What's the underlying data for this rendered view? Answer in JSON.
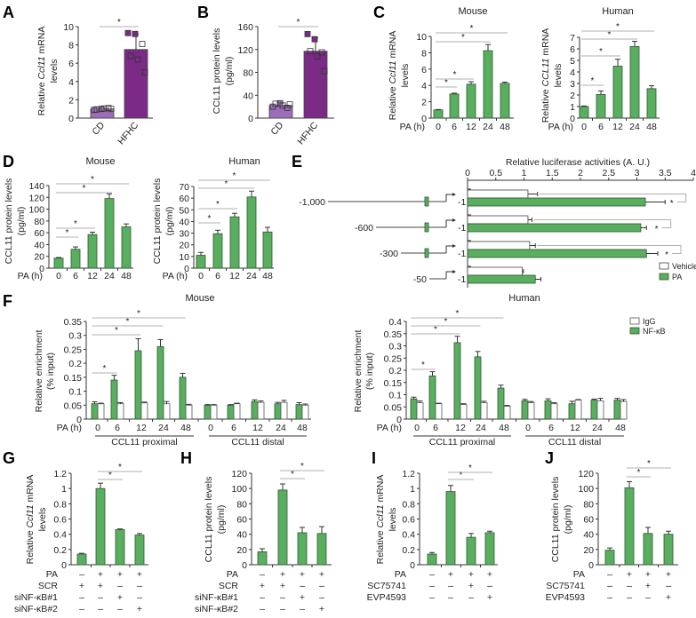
{
  "colors": {
    "green": "#5aae5f",
    "green_stroke": "#2e5a30",
    "white": "#ffffff",
    "cd": "#9c6db8",
    "hfhc": "#7b2a86",
    "sig_line": "#b0b0b0"
  },
  "chart_data": [
    {
      "id": "A",
      "letter": "A",
      "type": "bar",
      "title": "",
      "ylabel": [
        [
          {
            "t": "Relative "
          },
          {
            "t": "Ccl11",
            "i": true
          },
          {
            "t": " mRNA"
          }
        ],
        [
          {
            "t": "levels"
          }
        ]
      ],
      "ylim": [
        0,
        10
      ],
      "yticks": [
        0,
        2,
        4,
        6,
        8,
        10
      ],
      "categories": [
        "CD",
        "HFHC"
      ],
      "values": [
        1.0,
        7.5
      ],
      "errors": [
        0.1,
        1.7
      ],
      "bar_colors": [
        "cd",
        "hfhc"
      ],
      "points": [
        [
          0.9,
          1.0,
          1.1,
          0.95,
          1.05,
          1.0
        ],
        [
          9.3,
          9.2,
          8.1,
          6.8,
          6.4,
          5.0
        ]
      ],
      "significance": [
        [
          0,
          1
        ]
      ],
      "star": "*"
    },
    {
      "id": "B",
      "letter": "B",
      "type": "bar",
      "title": "",
      "ylabel": [
        [
          {
            "t": "CCL11 protein levels"
          }
        ],
        [
          {
            "t": "(pg/ml)"
          }
        ]
      ],
      "ylim": [
        0,
        160
      ],
      "yticks": [
        0,
        40,
        80,
        120,
        160
      ],
      "categories": [
        "CD",
        "HFHC"
      ],
      "values": [
        22,
        117
      ],
      "errors": [
        4,
        23
      ],
      "bar_colors": [
        "cd",
        "hfhc"
      ],
      "points": [
        [
          20,
          26,
          18,
          25,
          22,
          24
        ],
        [
          147,
          138,
          115,
          117,
          108,
          82
        ]
      ],
      "significance": [
        [
          0,
          1
        ]
      ],
      "star": "*"
    },
    {
      "id": "C-mouse",
      "letter": "C",
      "type": "bar",
      "title": "Mouse",
      "xprefix": "PA (h)",
      "ylabel": [
        [
          {
            "t": "Relative "
          },
          {
            "t": "Ccl11",
            "i": true
          },
          {
            "t": " mRNA"
          }
        ],
        [
          {
            "t": "levels"
          }
        ]
      ],
      "ylim": [
        0,
        10
      ],
      "yticks": [
        0,
        2,
        4,
        6,
        8,
        10
      ],
      "categories": [
        "0",
        "6",
        "12",
        "24",
        "48"
      ],
      "values": [
        1.0,
        2.95,
        4.15,
        8.25,
        4.25
      ],
      "errors": [
        0.05,
        0.1,
        0.3,
        0.75,
        0.15
      ],
      "significance": [
        [
          0,
          1
        ],
        [
          0,
          2
        ],
        [
          0,
          3
        ],
        [
          0,
          4
        ]
      ],
      "star": "*"
    },
    {
      "id": "C-human",
      "letter": "",
      "type": "bar",
      "title": "Human",
      "xprefix": "PA (h)",
      "ylabel": [
        [
          {
            "t": "Relative "
          },
          {
            "t": "CCL11",
            "i": true
          },
          {
            "t": " mRNA"
          }
        ],
        [
          {
            "t": "levels"
          }
        ]
      ],
      "ylim": [
        0,
        7
      ],
      "yticks": [
        0,
        1,
        2,
        3,
        4,
        5,
        6,
        7
      ],
      "categories": [
        "0",
        "6",
        "12",
        "24",
        "48"
      ],
      "values": [
        1.0,
        2.05,
        4.5,
        6.2,
        2.55
      ],
      "errors": [
        0.05,
        0.3,
        0.6,
        0.45,
        0.25
      ],
      "significance": [
        [
          0,
          1
        ],
        [
          0,
          2
        ],
        [
          0,
          3
        ],
        [
          0,
          4
        ]
      ],
      "star": "*"
    },
    {
      "id": "D-mouse",
      "letter": "D",
      "type": "bar",
      "title": "Mouse",
      "xprefix": "PA (h)",
      "ylabel": [
        [
          {
            "t": "CCL11 protein levels"
          }
        ],
        [
          {
            "t": "(pg/ml)"
          }
        ]
      ],
      "ylim": [
        0,
        140
      ],
      "yticks": [
        0,
        20,
        40,
        60,
        80,
        100,
        120,
        140
      ],
      "categories": [
        "0",
        "6",
        "12",
        "24",
        "48"
      ],
      "values": [
        17,
        32,
        57,
        118,
        70
      ],
      "errors": [
        1,
        4,
        4,
        8,
        5
      ],
      "significance": [
        [
          0,
          1
        ],
        [
          0,
          2
        ],
        [
          0,
          3
        ],
        [
          0,
          4
        ]
      ],
      "star": "*"
    },
    {
      "id": "D-human",
      "letter": "",
      "type": "bar",
      "title": "Human",
      "xprefix": "PA (h)",
      "ylabel": [
        [
          {
            "t": "CCL11 protein levels"
          }
        ],
        [
          {
            "t": "(pg/ml)"
          }
        ]
      ],
      "ylim": [
        0,
        70
      ],
      "yticks": [
        0,
        10,
        20,
        30,
        40,
        50,
        60,
        70
      ],
      "categories": [
        "0",
        "6",
        "12",
        "24",
        "48"
      ],
      "values": [
        11,
        29.5,
        44,
        61,
        31
      ],
      "errors": [
        2.5,
        3,
        3,
        5,
        4
      ],
      "significance": [
        [
          0,
          1
        ],
        [
          0,
          2
        ],
        [
          0,
          3
        ],
        [
          0,
          4
        ]
      ],
      "star": "*"
    },
    {
      "id": "E",
      "letter": "E",
      "type": "hbar",
      "title": "Relative luciferase activities (A. U.)",
      "xlim": [
        0,
        4
      ],
      "xticks": [
        "0",
        "0.5",
        "1",
        "1.5",
        "2",
        "2.5",
        "3",
        "3.5",
        "4"
      ],
      "constructs": [
        "-1,000",
        "-600",
        "-300",
        "-50"
      ],
      "tss_label": "-1",
      "series": [
        {
          "name": "Vehicle",
          "color": "white",
          "values": [
            1.07,
            1.07,
            1.1,
            0.97
          ],
          "errors": [
            0.17,
            0.07,
            0.1,
            0.02
          ]
        },
        {
          "name": "PA",
          "color": "green",
          "values": [
            3.15,
            3.07,
            3.17,
            1.2
          ],
          "errors": [
            0.35,
            0.1,
            0.2,
            0.1
          ]
        }
      ],
      "significance_rows": [
        0,
        1,
        2
      ],
      "star": "*",
      "legend": "bottom-right"
    },
    {
      "id": "F-mouse",
      "letter": "F",
      "type": "grouped_bar",
      "title": "Mouse",
      "xprefix": "PA (h)",
      "ylabel": [
        [
          {
            "t": "Relative enrichment"
          }
        ],
        [
          {
            "t": "(% input)"
          }
        ]
      ],
      "ylim": [
        0,
        0.35
      ],
      "yticks": [
        "0",
        "0.05",
        "0.1",
        "0.15",
        "0.2",
        "0.25",
        "0.3",
        "0.35"
      ],
      "categories": [
        "0",
        "6",
        "12",
        "24",
        "48",
        "0",
        "6",
        "12",
        "24",
        "48"
      ],
      "groups": [
        "CCL11 proximal",
        "CCL11 distal"
      ],
      "series": [
        {
          "name": "NF-κB",
          "color": "green",
          "values": [
            0.055,
            0.14,
            0.245,
            0.26,
            0.15,
            0.05,
            0.05,
            0.063,
            0.055,
            0.052
          ],
          "errors": [
            0.007,
            0.017,
            0.043,
            0.025,
            0.014,
            0.002,
            0.002,
            0.006,
            0.005,
            0.007
          ]
        },
        {
          "name": "IgG",
          "color": "white",
          "values": [
            0.055,
            0.055,
            0.058,
            0.055,
            0.05,
            0.05,
            0.055,
            0.06,
            0.06,
            0.05
          ],
          "errors": [
            0.002,
            0.004,
            0.003,
            0.008,
            0.003,
            0.002,
            0.002,
            0.005,
            0.007,
            0.004
          ]
        }
      ],
      "significance": [
        [
          0,
          1
        ],
        [
          0,
          2
        ],
        [
          0,
          3
        ],
        [
          0,
          4
        ]
      ],
      "star": "*"
    },
    {
      "id": "F-human",
      "letter": "",
      "type": "grouped_bar",
      "title": "Human",
      "xprefix": "PA (h)",
      "ylabel": [
        [
          {
            "t": "Relative enrichment"
          }
        ],
        [
          {
            "t": "(% input)"
          }
        ]
      ],
      "ylim": [
        0,
        0.4
      ],
      "yticks": [
        "0",
        "0.05",
        "0.1",
        "0.15",
        "0.2",
        "0.25",
        "0.3",
        "0.35",
        "0.4"
      ],
      "categories": [
        "0",
        "6",
        "12",
        "24",
        "48",
        "0",
        "6",
        "12",
        "24",
        "48"
      ],
      "groups": [
        "CCL11 proximal",
        "CCL11 distal"
      ],
      "series": [
        {
          "name": "NF-κB",
          "color": "green",
          "values": [
            0.083,
            0.177,
            0.313,
            0.255,
            0.127,
            0.075,
            0.075,
            0.063,
            0.078,
            0.078
          ],
          "errors": [
            0.007,
            0.017,
            0.026,
            0.022,
            0.012,
            0.006,
            0.008,
            0.01,
            0.004,
            0.007
          ]
        },
        {
          "name": "IgG",
          "color": "white",
          "values": [
            0.067,
            0.063,
            0.06,
            0.067,
            0.053,
            0.067,
            0.063,
            0.078,
            0.075,
            0.072
          ],
          "errors": [
            0.007,
            0.002,
            0.003,
            0.006,
            0.003,
            0.005,
            0.004,
            0.002,
            0.01,
            0.008
          ]
        }
      ],
      "legend_items": [
        "IgG",
        "NF-κB"
      ],
      "legend": "top-right",
      "significance": [
        [
          0,
          1
        ],
        [
          0,
          2
        ],
        [
          0,
          3
        ],
        [
          0,
          4
        ]
      ],
      "star": "*"
    },
    {
      "id": "G",
      "letter": "G",
      "type": "bar",
      "title": "",
      "ylabel": [
        [
          {
            "t": "Relative "
          },
          {
            "t": "Ccl11",
            "i": true
          },
          {
            "t": " mRNA"
          }
        ],
        [
          {
            "t": "levels"
          }
        ]
      ],
      "ylim": [
        0,
        1.2
      ],
      "yticks": [
        "0",
        "0.2",
        "0.4",
        "0.6",
        "0.8",
        "1",
        "1.2"
      ],
      "values": [
        0.14,
        1.0,
        0.46,
        0.39
      ],
      "errors": [
        0.01,
        0.07,
        0.01,
        0.02
      ],
      "treatments": [
        {
          "label": "PA",
          "marks": [
            "–",
            "+",
            "+",
            "+"
          ]
        },
        {
          "label": "SCR",
          "marks": [
            "+",
            "+",
            "–",
            "–"
          ]
        },
        {
          "label": "siNF-κB#1",
          "marks": [
            "–",
            "–",
            "+",
            "–"
          ]
        },
        {
          "label": "siNF-κB#2",
          "marks": [
            "–",
            "–",
            "–",
            "+"
          ]
        }
      ],
      "significance": [
        [
          1,
          2
        ],
        [
          1,
          3
        ]
      ],
      "star": "*"
    },
    {
      "id": "H",
      "letter": "H",
      "type": "bar",
      "title": "",
      "ylabel": [
        [
          {
            "t": "CCL11 protein levels"
          }
        ],
        [
          {
            "t": "(pg/ml)"
          }
        ]
      ],
      "ylim": [
        0,
        120
      ],
      "yticks": [
        0,
        20,
        40,
        60,
        80,
        100,
        120
      ],
      "values": [
        17,
        98,
        42,
        41
      ],
      "errors": [
        4,
        8,
        7,
        9
      ],
      "treatments": [
        {
          "label": "PA",
          "marks": [
            "–",
            "+",
            "+",
            "+"
          ]
        },
        {
          "label": "SCR",
          "marks": [
            "+",
            "+",
            "–",
            "–"
          ]
        },
        {
          "label": "siNF-κB#1",
          "marks": [
            "–",
            "–",
            "+",
            "–"
          ]
        },
        {
          "label": "siNF-κB#2",
          "marks": [
            "–",
            "–",
            "–",
            "+"
          ]
        }
      ],
      "significance": [
        [
          1,
          2
        ],
        [
          1,
          3
        ]
      ],
      "star": "*"
    },
    {
      "id": "I",
      "letter": "I",
      "type": "bar",
      "title": "",
      "ylabel": [
        [
          {
            "t": "Relative "
          },
          {
            "t": "Ccl11",
            "i": true
          },
          {
            "t": " mRNA"
          }
        ],
        [
          {
            "t": "levels"
          }
        ]
      ],
      "ylim": [
        0,
        1.2
      ],
      "yticks": [
        "0",
        "0.2",
        "0.4",
        "0.6",
        "0.8",
        "1",
        "1.2"
      ],
      "values": [
        0.14,
        0.96,
        0.36,
        0.42
      ],
      "errors": [
        0.02,
        0.08,
        0.05,
        0.02
      ],
      "treatments": [
        {
          "label": "PA",
          "marks": [
            "–",
            "+",
            "+",
            "+"
          ]
        },
        {
          "label": "SC75741",
          "marks": [
            "–",
            "–",
            "+",
            "–"
          ]
        },
        {
          "label": "EVP4593",
          "marks": [
            "–",
            "–",
            "–",
            "+"
          ]
        }
      ],
      "significance": [
        [
          1,
          2
        ],
        [
          1,
          3
        ]
      ],
      "star": "*"
    },
    {
      "id": "J",
      "letter": "J",
      "type": "bar",
      "title": "",
      "ylabel": [
        [
          {
            "t": "CCL11 protein levels"
          }
        ],
        [
          {
            "t": "(pg/ml)"
          }
        ]
      ],
      "ylim": [
        0,
        120
      ],
      "yticks": [
        0,
        20,
        40,
        60,
        80,
        100,
        120
      ],
      "values": [
        19,
        101,
        41,
        40
      ],
      "errors": [
        3,
        8,
        8,
        4
      ],
      "treatments": [
        {
          "label": "PA",
          "marks": [
            "–",
            "+",
            "+",
            "+"
          ]
        },
        {
          "label": "SC75741",
          "marks": [
            "–",
            "–",
            "+",
            "–"
          ]
        },
        {
          "label": "EVP4593",
          "marks": [
            "–",
            "–",
            "–",
            "+"
          ]
        }
      ],
      "significance": [
        [
          1,
          2
        ],
        [
          1,
          3
        ]
      ],
      "star": "*"
    }
  ]
}
